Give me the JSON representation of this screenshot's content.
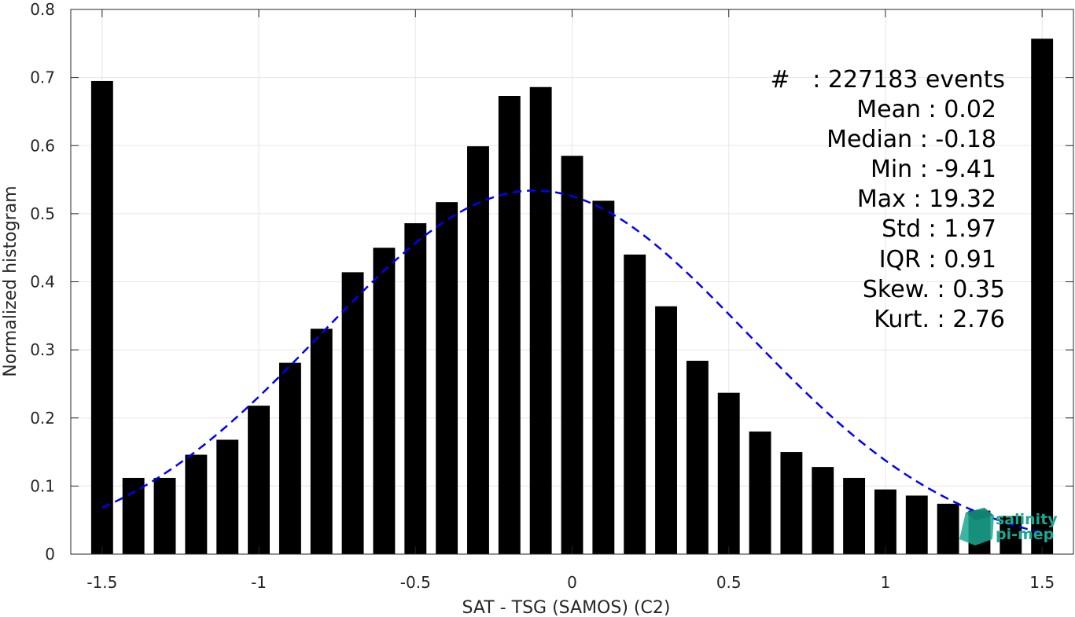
{
  "chart_data": {
    "type": "bar",
    "xlabel": "SAT - TSG (SAMOS) (C2)",
    "ylabel": "Normalized histogram",
    "xlim": [
      -1.6,
      1.6
    ],
    "ylim": [
      0,
      0.8
    ],
    "grid": true,
    "x_ticks": [
      -1.5,
      -1,
      -0.5,
      0,
      0.5,
      1,
      1.5
    ],
    "x_tick_labels": [
      "-1.5",
      "-1",
      "-0.5",
      "0",
      "0.5",
      "1",
      "1.5"
    ],
    "y_ticks": [
      0,
      0.1,
      0.2,
      0.3,
      0.4,
      0.5,
      0.6,
      0.7,
      0.8
    ],
    "y_tick_labels": [
      "0",
      "0.1",
      "0.2",
      "0.3",
      "0.4",
      "0.5",
      "0.6",
      "0.7",
      "0.8"
    ],
    "bar_width": 0.07,
    "x": [
      -1.5,
      -1.4,
      -1.3,
      -1.2,
      -1.1,
      -1.0,
      -0.9,
      -0.8,
      -0.7,
      -0.6,
      -0.5,
      -0.4,
      -0.3,
      -0.2,
      -0.1,
      0.0,
      0.1,
      0.2,
      0.3,
      0.4,
      0.5,
      0.6,
      0.7,
      0.8,
      0.9,
      1.0,
      1.1,
      1.2,
      1.3,
      1.4,
      1.5
    ],
    "values": [
      0.695,
      0.112,
      0.112,
      0.146,
      0.168,
      0.218,
      0.281,
      0.331,
      0.414,
      0.45,
      0.486,
      0.517,
      0.599,
      0.673,
      0.686,
      0.585,
      0.519,
      0.44,
      0.364,
      0.284,
      0.237,
      0.18,
      0.15,
      0.128,
      0.112,
      0.095,
      0.086,
      0.074,
      0.064,
      0.056,
      0.757
    ],
    "bar_color": "#000000",
    "fit_curve": {
      "style": "dashed",
      "color": "#0000ff",
      "x_range": [
        -1.5,
        1.5
      ],
      "peak": 0.534,
      "center": -0.12,
      "sigma": 0.68
    },
    "stats_lines": [
      "#   : 227183 events",
      "Mean : 0.02",
      "Median : -0.18",
      "Min : -9.41",
      "Max : 19.32",
      "Std : 1.97",
      "IQR : 0.91",
      "Skew. : 0.35",
      "Kurt. : 2.76"
    ]
  },
  "logo": {
    "line1": "salinity",
    "line2": "pi-mep",
    "color": "#1aa892"
  }
}
